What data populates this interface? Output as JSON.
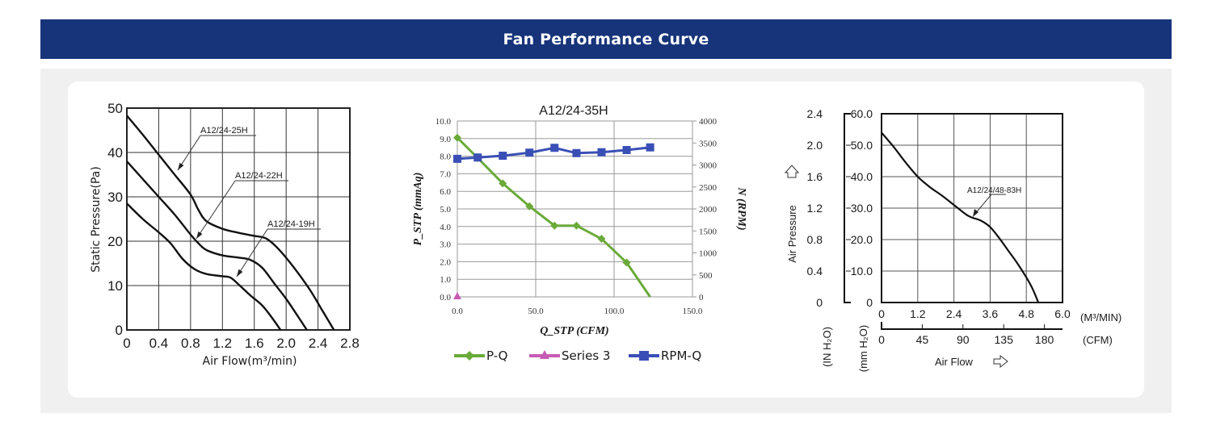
{
  "header": {
    "title": "Fan Performance Curve"
  },
  "colors": {
    "banner": "#17347a",
    "panel": "#f0f0f0",
    "card": "#ffffff",
    "pq": "#6aaa3a",
    "rpm": "#3a4fb5",
    "series3": "#c65bb4"
  },
  "chart_data": [
    {
      "type": "line",
      "title": "",
      "xlabel": "Air Flow(m³/min)",
      "ylabel": "Static Pressure(Pa)",
      "xlim": [
        0,
        2.8
      ],
      "ylim": [
        0,
        50
      ],
      "xticks": [
        "0",
        "0.4",
        "0.8",
        "1.2",
        "1.6",
        "2.0",
        "2.4",
        "2.8"
      ],
      "yticks": [
        "0",
        "10",
        "20",
        "30",
        "40",
        "50"
      ],
      "grid": true,
      "series": [
        {
          "name": "A12/24-25H",
          "x": [
            0,
            0.2,
            0.4,
            0.6,
            0.8,
            0.9,
            1.0,
            1.2,
            1.4,
            1.6,
            1.75,
            1.9,
            2.1,
            2.3,
            2.45,
            2.6
          ],
          "y": [
            48.3,
            44,
            39.5,
            35,
            30.5,
            27,
            24.5,
            22.8,
            21.9,
            21.2,
            20.6,
            18.3,
            14,
            9,
            4.5,
            0
          ]
        },
        {
          "name": "A12/24-22H",
          "x": [
            0,
            0.2,
            0.4,
            0.6,
            0.8,
            0.9,
            1.0,
            1.2,
            1.4,
            1.55,
            1.7,
            1.85,
            2.0,
            2.15,
            2.26
          ],
          "y": [
            38,
            34,
            30,
            26,
            21.5,
            19.5,
            18,
            16.8,
            16.3,
            15.8,
            14,
            10.5,
            7,
            3,
            0
          ]
        },
        {
          "name": "A12/24-19H",
          "x": [
            0,
            0.2,
            0.4,
            0.55,
            0.7,
            0.85,
            1.0,
            1.2,
            1.3,
            1.4,
            1.55,
            1.7,
            1.82,
            1.93
          ],
          "y": [
            28.5,
            25,
            22,
            19.5,
            16,
            13.7,
            12.6,
            12.1,
            11.8,
            10.3,
            7.8,
            5.5,
            2.8,
            0
          ]
        }
      ]
    },
    {
      "type": "line",
      "title": "A12/24-35H",
      "xlabel": "Q_STP (CFM)",
      "ylabel": "P_STP (mmAq)",
      "ylabel_right": "N (RPM)",
      "xlim": [
        0,
        150
      ],
      "ylim": [
        0,
        10
      ],
      "ylim_right": [
        0,
        4000
      ],
      "xticks": [
        "0.0",
        "50.0",
        "100.0",
        "150.0"
      ],
      "yticks": [
        "0.0",
        "1.0",
        "2.0",
        "3.0",
        "4.0",
        "5.0",
        "6.0",
        "7.0",
        "8.0",
        "9.0",
        "10.0"
      ],
      "yticks_right": [
        "0",
        "500",
        "1000",
        "1500",
        "2000",
        "2500",
        "3000",
        "3500",
        "4000"
      ],
      "grid": true,
      "legend": "bottom",
      "series": [
        {
          "name": "P-Q",
          "axis": "left",
          "marker": "diamond",
          "x": [
            0,
            13,
            29,
            46,
            62,
            76,
            92,
            108,
            123
          ],
          "y": [
            9.05,
            7.9,
            6.45,
            5.15,
            4.05,
            4.05,
            3.3,
            1.95,
            0
          ]
        },
        {
          "name": "Series 3",
          "axis": "left",
          "marker": "triangle",
          "x": [
            0
          ],
          "y": [
            0
          ]
        },
        {
          "name": "RPM-Q",
          "axis": "right",
          "marker": "square",
          "x": [
            0,
            13,
            29,
            46,
            62,
            76,
            92,
            108,
            123
          ],
          "y": [
            3140,
            3170,
            3210,
            3280,
            3390,
            3270,
            3290,
            3340,
            3400
          ]
        }
      ]
    },
    {
      "type": "line",
      "title": "",
      "xlabel": "Air Flow",
      "ylabel": "Air Pressure",
      "xlim": [
        0,
        6.0
      ],
      "ylim": [
        0,
        60
      ],
      "x_unit": "(M³/MIN)",
      "x2_unit": "(CFM)",
      "y_unit_left": "(IN H₂O)",
      "y_unit_right": "(mm H₂O)",
      "xticks": [
        "0",
        "1.2",
        "2.4",
        "3.6",
        "4.8",
        "6.0"
      ],
      "x2ticks": [
        "0",
        "45",
        "90",
        "135",
        "180"
      ],
      "yticks_inh2o": [
        "0",
        "0.4",
        "0.8",
        "1.2",
        "1.6",
        "2.0",
        "2.4"
      ],
      "yticks_mmh2o": [
        "0",
        "10.0",
        "20.0",
        "30.0",
        "40.0",
        "50.0",
        "60.0"
      ],
      "grid": true,
      "series": [
        {
          "name": "A12/24/48-83H",
          "x": [
            0,
            0.4,
            0.8,
            1.2,
            1.6,
            2.0,
            2.4,
            2.8,
            3.0,
            3.3,
            3.6,
            3.9,
            4.2,
            4.5,
            4.8,
            5.0,
            5.2
          ],
          "y": [
            54,
            49.5,
            44.5,
            40,
            36.7,
            34,
            31,
            28,
            27,
            26,
            24,
            20.5,
            16.5,
            12.5,
            8,
            4.5,
            0
          ]
        }
      ]
    }
  ]
}
